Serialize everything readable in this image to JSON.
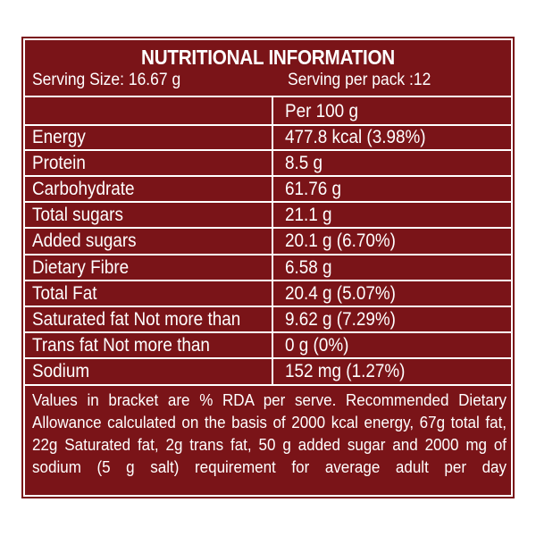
{
  "label": {
    "title": "NUTRITIONAL INFORMATION",
    "serving_size": "Serving Size: 16.67 g",
    "servings_per_pack": "Serving  per pack :12",
    "column_header": "Per 100 g",
    "rows": [
      {
        "nutrient": "Energy",
        "value": "477.8 kcal (3.98%)"
      },
      {
        "nutrient": "Protein",
        "value": "8.5 g"
      },
      {
        "nutrient": "Carbohydrate",
        "value": "61.76 g"
      },
      {
        "nutrient": "Total sugars",
        "value": "21.1 g"
      },
      {
        "nutrient": " Added sugars",
        "value": "20.1 g (6.70%)"
      },
      {
        "nutrient": " Dietary Fibre",
        "value": "6.58 g"
      },
      {
        "nutrient": "Total Fat",
        "value": "20.4 g (5.07%)"
      },
      {
        "nutrient": " Saturated fat Not more than",
        "value": "9.62 g (7.29%)"
      },
      {
        "nutrient": " Trans fat Not more than",
        "value": "0 g (0%)"
      },
      {
        "nutrient": " Sodium",
        "value": "152 mg (1.27%)"
      }
    ],
    "footnote_lines": [
      "Values in bracket are % RDA per serve. Recommended Dietary",
      "Allowance calculated on the basis of 2000 kcal energy, 67g total fat,",
      "22g Saturated fat, 2g trans fat, 50 g added sugar and 2000 mg of",
      "sodium  (5  g  salt)  requirement  for  average  adult  per  day"
    ],
    "colors": {
      "background": "#7a1418",
      "text": "#ffffff"
    }
  }
}
